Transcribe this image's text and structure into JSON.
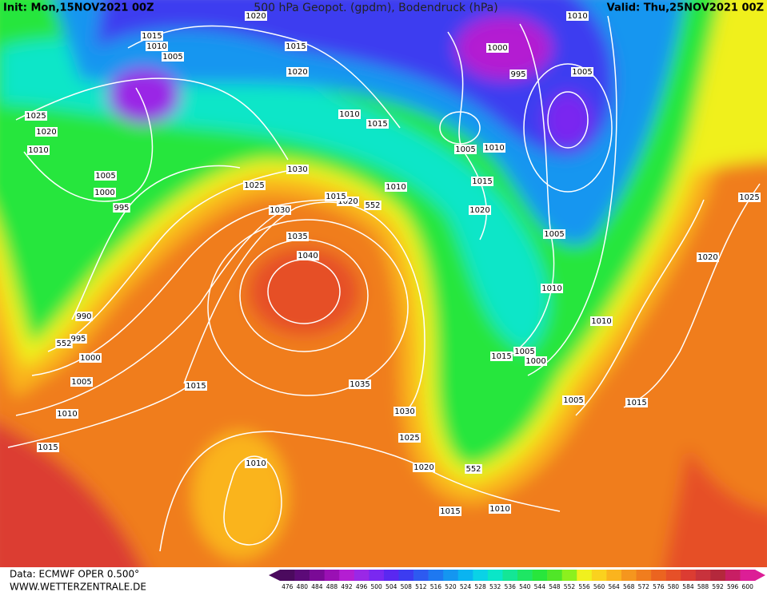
{
  "header": {
    "init": "Init: Mon,15NOV2021 00Z",
    "title": "500 hPa Geopot. (gpdm), Bodendruck (hPa)",
    "valid": "Valid: Thu,25NOV2021 00Z"
  },
  "isobar_labels": [
    "1015",
    "1010",
    "1005",
    "1025",
    "1020",
    "1010",
    "1005",
    "1000",
    "995",
    "990",
    "995",
    "1000",
    "1005",
    "1010",
    "1015",
    "1015",
    "1010",
    "1035",
    "1030",
    "1025",
    "1020",
    "1015",
    "1010",
    "1040",
    "1035",
    "1030",
    "1025",
    "1030",
    "1020",
    "1015",
    "1020",
    "1015",
    "1010",
    "1015",
    "1010",
    "1015",
    "1020",
    "1005",
    "1010",
    "1000",
    "995",
    "1005",
    "1005",
    "1010",
    "1010",
    "1015",
    "1005",
    "1000",
    "1005",
    "1015",
    "1020",
    "1025",
    "1010",
    "1020"
  ],
  "height_labels": [
    "552",
    "552",
    "552"
  ],
  "footer": {
    "data": "Data: ECMWF OPER 0.500°",
    "url": "WWW.WETTERZENTRALE.DE"
  },
  "colorbar": {
    "labels": [
      476,
      480,
      484,
      488,
      492,
      496,
      500,
      504,
      508,
      512,
      516,
      520,
      524,
      528,
      532,
      536,
      540,
      544,
      548,
      552,
      556,
      560,
      564,
      568,
      572,
      576,
      580,
      584,
      588,
      592,
      596,
      600
    ],
    "colors": [
      "#4b0a5e",
      "#5c0a78",
      "#7a0a96",
      "#9a10b4",
      "#b41ed2",
      "#9a28e6",
      "#7a28f0",
      "#5a28f0",
      "#3c3cf0",
      "#2d5af0",
      "#1e78f0",
      "#1496f0",
      "#0ab4f0",
      "#0ad2e6",
      "#0ae6c8",
      "#14e696",
      "#1ee664",
      "#28e63c",
      "#50e628",
      "#8cf01e",
      "#f0f01e",
      "#fad21e",
      "#fab41e",
      "#f5961e",
      "#f07d1e",
      "#eb6420",
      "#e65028",
      "#dc3c32",
      "#c8323c",
      "#b4283c",
      "#c81e64",
      "#dc1e96"
    ]
  }
}
